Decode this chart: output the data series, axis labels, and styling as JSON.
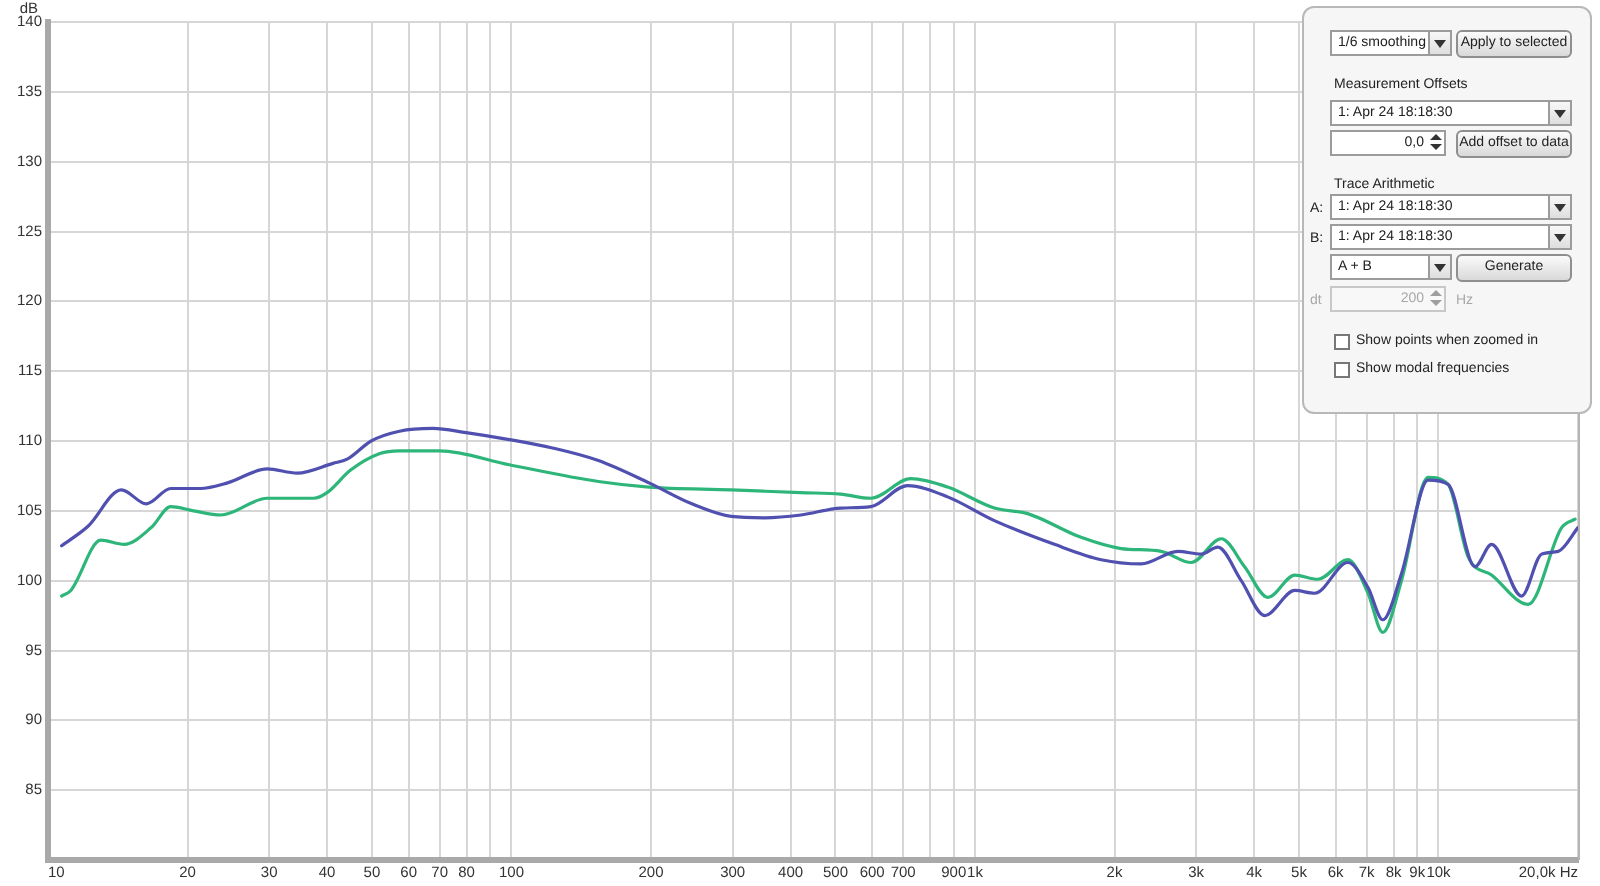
{
  "chart_data": {
    "type": "line",
    "ylabel": "dB",
    "annotations": [
      "1/6 smoothing",
      "Apply to selected",
      "Measurement Offsets",
      "1: Apr 24 18:18:30",
      "0,0",
      "Add offset to data",
      "Trace Arithmetic",
      "A:",
      "1: Apr 24 18:18:30",
      "B:",
      "1: Apr 24 18:18:30",
      "A + B",
      "Generate",
      "dt",
      "200",
      "Hz",
      "Show points when zoomed in",
      "Show modal frequencies"
    ],
    "log": "x",
    "xlim": [
      10,
      20000
    ],
    "ylim": [
      80,
      140
    ],
    "xticks": [
      10,
      20,
      30,
      40,
      50,
      60,
      70,
      80,
      {
        "value": 90,
        "label": null
      },
      100,
      200,
      300,
      400,
      500,
      600,
      700,
      {
        "value": 800,
        "label": null
      },
      900,
      {
        "value": 1000,
        "label": "1k"
      },
      {
        "value": 2000,
        "label": "2k"
      },
      {
        "value": 3000,
        "label": "3k"
      },
      {
        "value": 4000,
        "label": "4k"
      },
      {
        "value": 5000,
        "label": "5k"
      },
      {
        "value": 6000,
        "label": "6k"
      },
      {
        "value": 7000,
        "label": "7k"
      },
      {
        "value": 8000,
        "label": "8k"
      },
      {
        "value": 9000,
        "label": "9k"
      },
      {
        "value": 10000,
        "label": "10k"
      },
      {
        "value": 20000,
        "label": "20,0k Hz"
      }
    ],
    "yticks": [
      85,
      90,
      95,
      100,
      105,
      110,
      115,
      120,
      125,
      130,
      135,
      140
    ],
    "grid": true,
    "marker": "none",
    "series": [
      {
        "color": "#5050b0",
        "x": [
          10.7,
          12.2,
          14.4,
          16.3,
          18.4,
          21.3,
          24.4,
          29.7,
          34.5,
          41.2,
          44.2,
          49.8,
          57.3,
          67.6,
          79.8,
          98.9,
          122.6,
          154,
          198,
          245,
          298,
          352,
          421,
          513,
          596,
          715,
          873,
          1101,
          1484,
          1872,
          2283,
          2739,
          3077,
          3342,
          3754,
          4218,
          4896,
          5408,
          6378,
          7047,
          7585,
          8320,
          9495,
          10490,
          11985,
          13020,
          15110,
          16690,
          18130,
          20000
        ],
        "values": [
          102.5,
          103.9,
          106.5,
          105.5,
          106.6,
          106.6,
          107.0,
          108.0,
          107.7,
          108.4,
          108.7,
          110.0,
          110.7,
          110.9,
          110.6,
          110.1,
          109.5,
          108.6,
          107.0,
          105.5,
          104.6,
          104.5,
          104.7,
          105.2,
          105.3,
          106.8,
          106.0,
          104.3,
          102.6,
          101.5,
          101.2,
          102.1,
          101.9,
          102.4,
          100.0,
          97.5,
          99.3,
          99.1,
          101.3,
          99.5,
          97.2,
          100.5,
          107.2,
          106.9,
          101.0,
          102.6,
          98.9,
          101.9,
          102.1,
          103.8
        ]
      },
      {
        "color": "#2eb67a",
        "x": [
          10.7,
          11.2,
          13.0,
          14.6,
          16.7,
          18.4,
          20.6,
          23.6,
          29.7,
          37.4,
          40,
          44.9,
          52,
          57.3,
          70,
          98.9,
          154,
          198,
          298,
          421,
          513,
          596,
          727,
          873,
          1101,
          1299,
          1694,
          2067,
          2522,
          2928,
          3399,
          3817,
          4285,
          4896,
          5495,
          6378,
          7047,
          7585,
          8320,
          9495,
          10490,
          11590,
          13020,
          15610,
          18440,
          19710
        ],
        "values": [
          98.9,
          99.3,
          102.9,
          102.6,
          103.8,
          105.3,
          105.0,
          104.7,
          105.9,
          105.9,
          106.3,
          107.9,
          109.1,
          109.3,
          109.3,
          108.3,
          107.1,
          106.7,
          106.5,
          106.3,
          106.2,
          105.9,
          107.3,
          106.7,
          105.2,
          104.8,
          103.1,
          102.3,
          102.1,
          101.3,
          103.0,
          101.0,
          98.8,
          100.4,
          100.1,
          101.5,
          99.1,
          96.3,
          100.0,
          107.4,
          106.9,
          101.7,
          100.4,
          98.3,
          103.8,
          104.4
        ]
      }
    ]
  }
}
